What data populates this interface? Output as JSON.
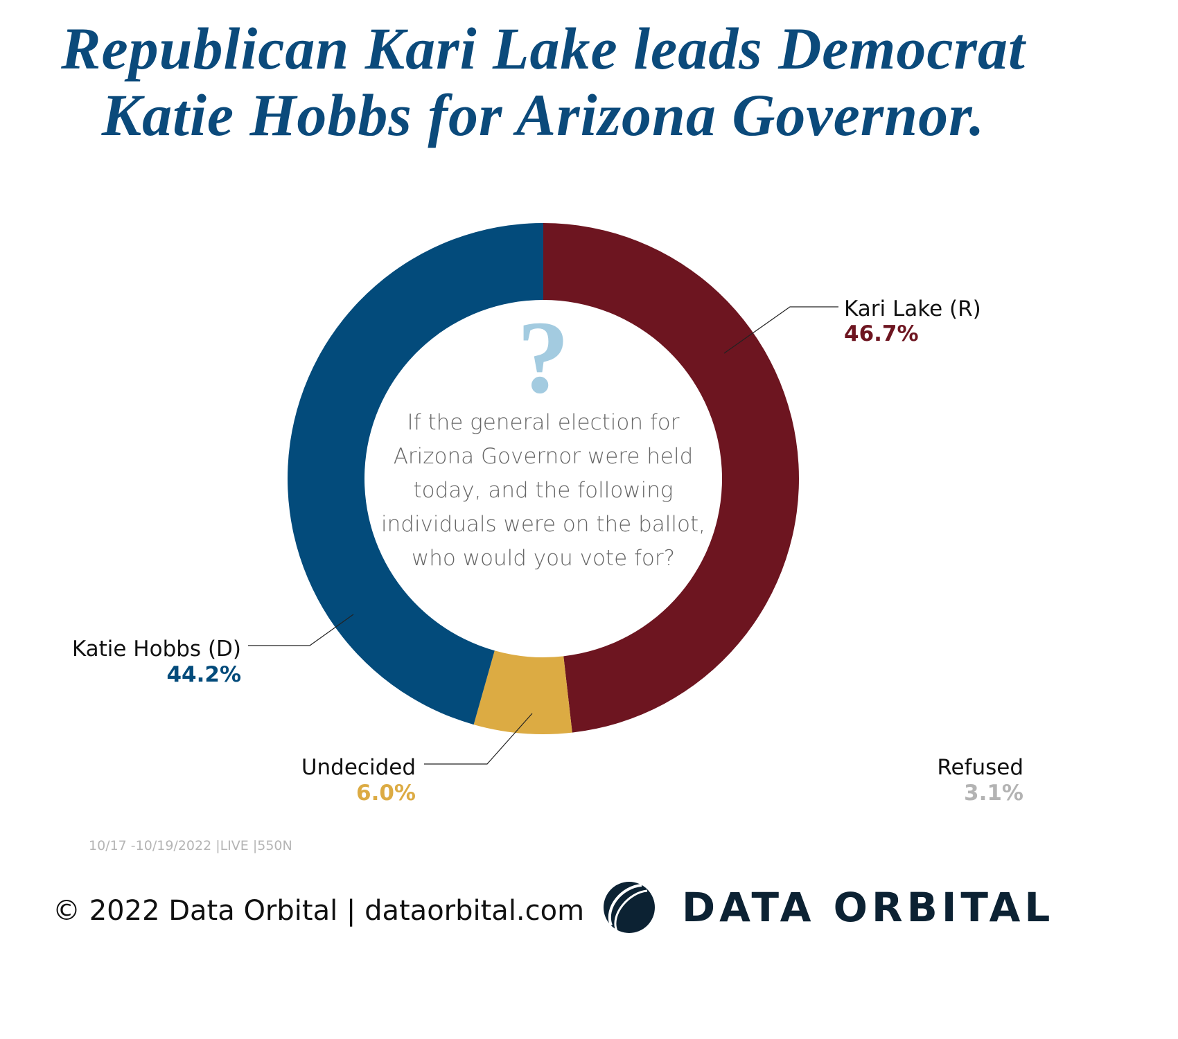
{
  "title": [
    "Republican Kari Lake leads Democrat",
    "Katie Hobbs for Arizona Governor."
  ],
  "question": "If the general election for Arizona Governor were held today, and the following individuals were on the ballot, who would you vote for?",
  "meta": "10/17 -10/19/2022 |LIVE |550N",
  "footer": {
    "copyright": "© 2022 Data Orbital | dataorbital.com",
    "logo_text": "DATA ORBITAL",
    "logo_icon": "orbit-globe-icon"
  },
  "chart_data": {
    "type": "pie",
    "variant": "donut",
    "title": "Republican Kari Lake leads Democrat Katie Hobbs for Arizona Governor.",
    "slices": [
      {
        "label": "Kari Lake (R)",
        "value": 46.7,
        "display": "46.7%",
        "color": "#6d1520",
        "drawn": true
      },
      {
        "label": "Undecided",
        "value": 6.0,
        "display": "6.0%",
        "color": "#dcab43",
        "drawn": true
      },
      {
        "label": "Katie Hobbs (D)",
        "value": 44.2,
        "display": "44.2%",
        "color": "#034b7b",
        "drawn": true
      },
      {
        "label": "Refused",
        "value": 3.1,
        "display": "3.1%",
        "color": "#b3b3b3",
        "drawn": false
      }
    ],
    "center_icon": "question-mark-icon",
    "center_icon_color": "#a3cbe0"
  }
}
